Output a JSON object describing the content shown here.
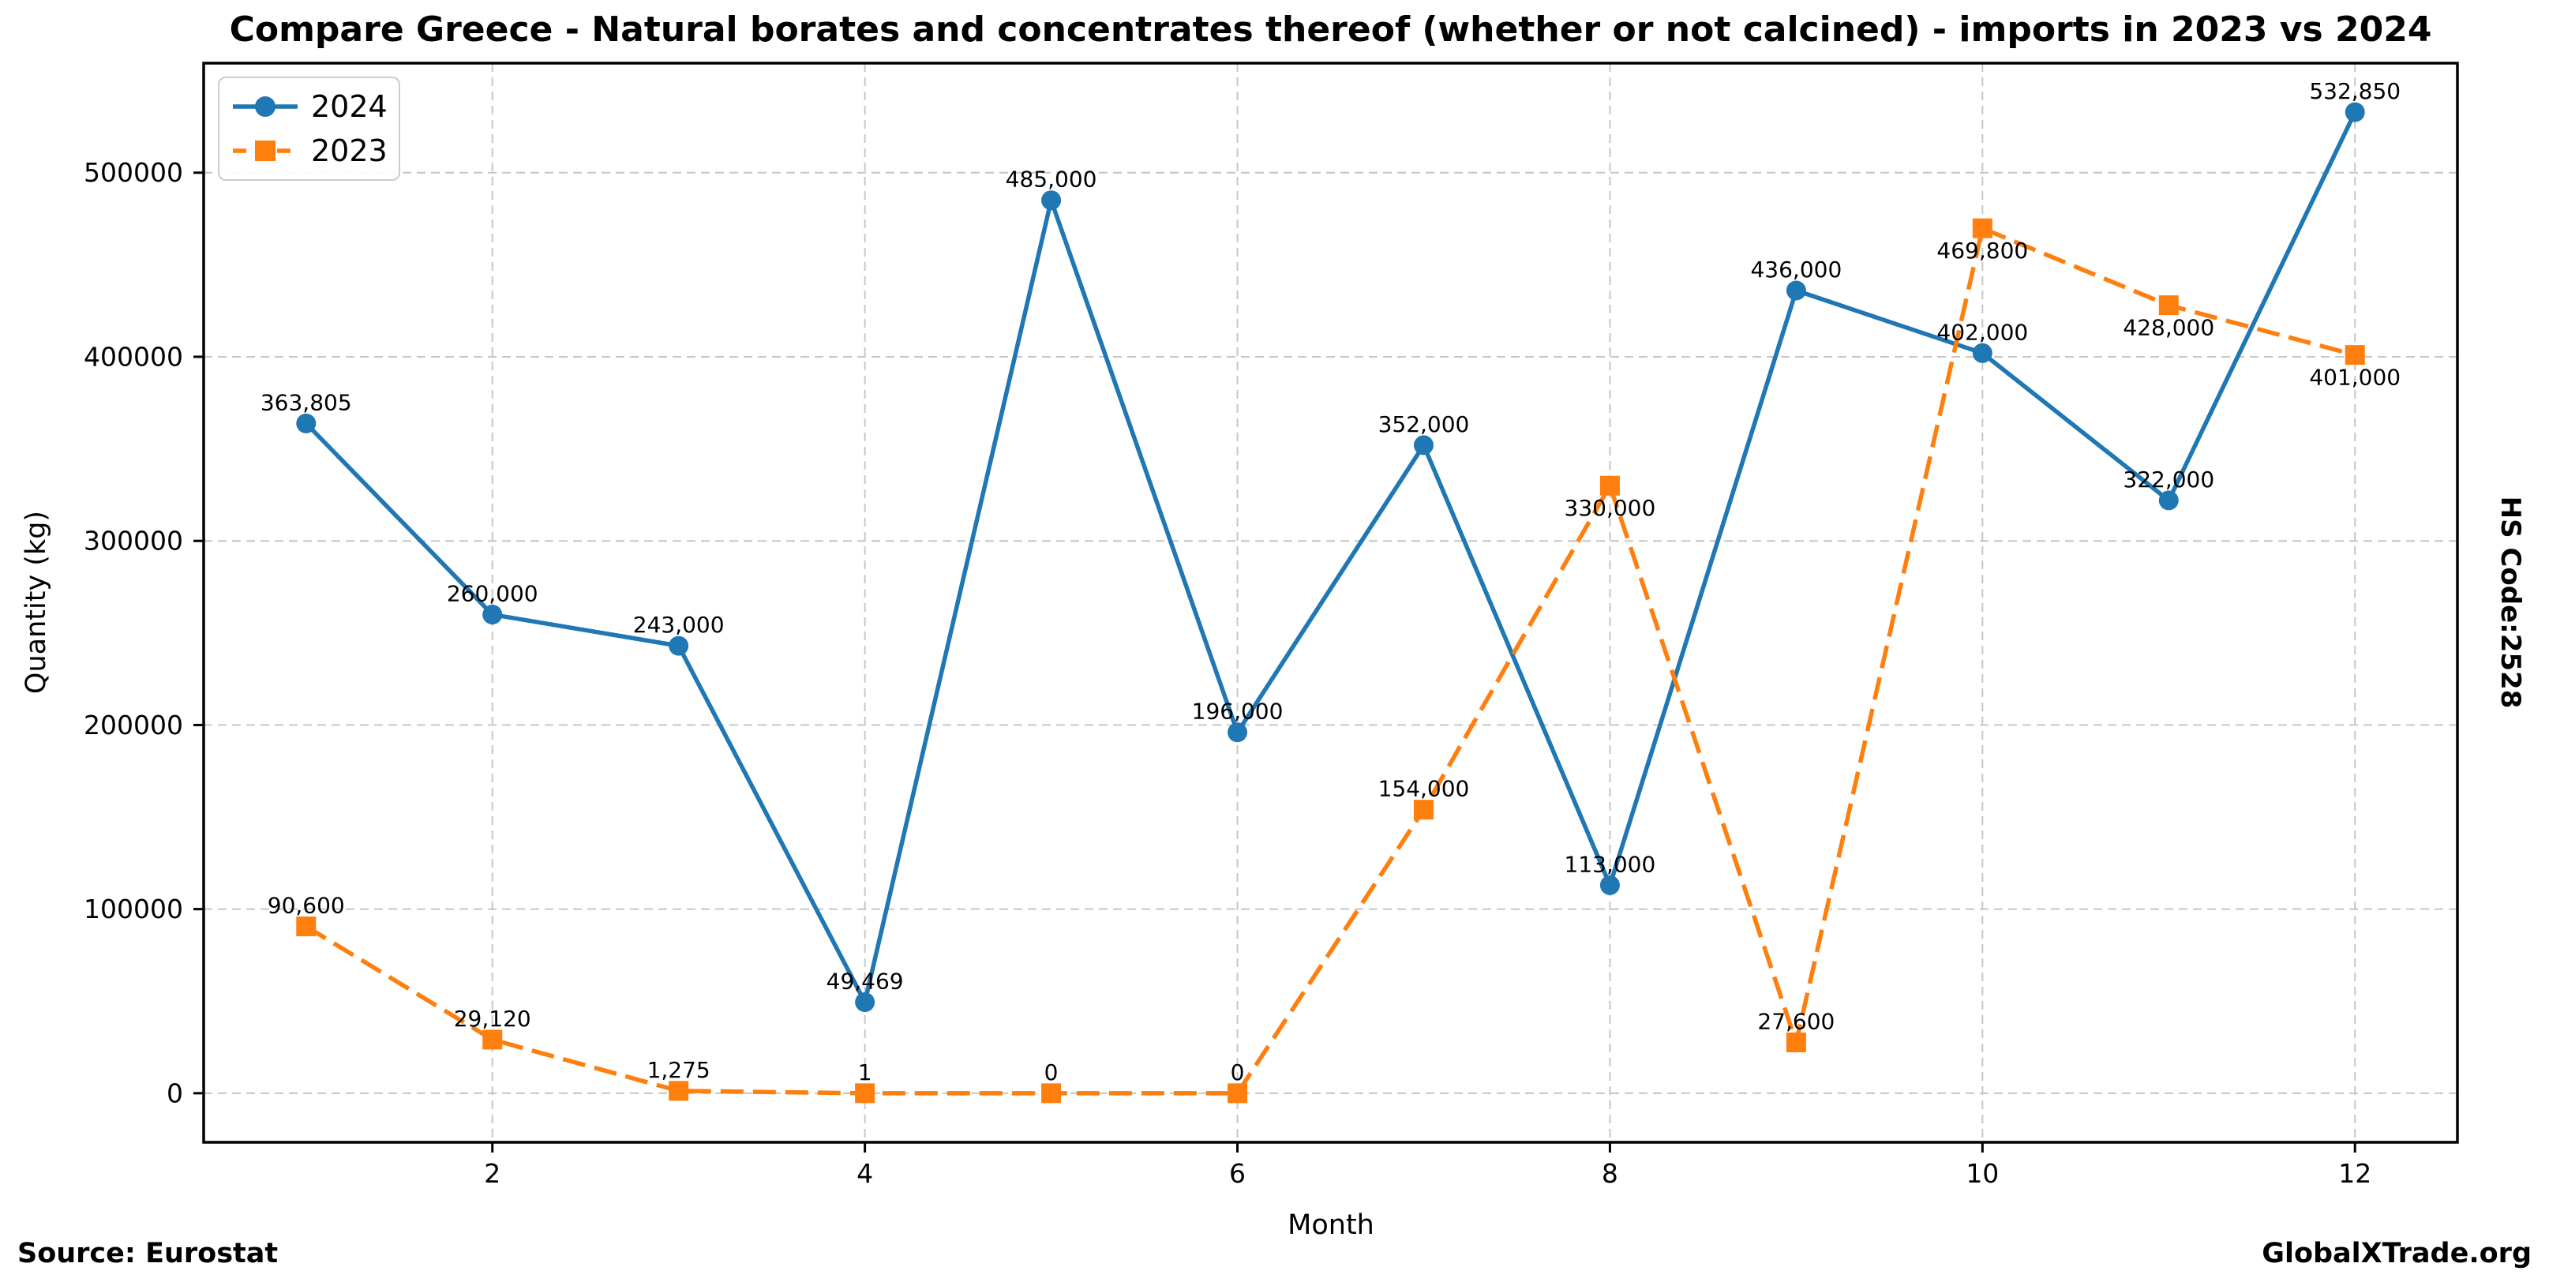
{
  "chart_data": {
    "type": "line",
    "title": "Compare Greece - Natural borates and concentrates thereof (whether or not calcined) - imports in 2023 vs 2024",
    "xlabel": "Month",
    "ylabel": "Quantity (kg)",
    "right_axis_label": "HS Code:2528",
    "source_note": "Source: Eurostat",
    "branding": "GlobalXTrade.org",
    "x": [
      1,
      2,
      3,
      4,
      5,
      6,
      7,
      8,
      9,
      10,
      11,
      12
    ],
    "xticks": [
      2,
      4,
      6,
      8,
      10,
      12
    ],
    "yticks": [
      0,
      100000,
      200000,
      300000,
      400000,
      500000
    ],
    "ytick_labels": [
      "0",
      "100000",
      "200000",
      "300000",
      "400000",
      "500000"
    ],
    "xlim": [
      0.45,
      12.55
    ],
    "ylim": [
      -26642,
      559492
    ],
    "grid": true,
    "legend_position": "upper-left",
    "series": [
      {
        "name": "2024",
        "color": "#1f77b4",
        "line_style": "solid",
        "marker": "circle",
        "values": [
          363805,
          260000,
          243000,
          49469,
          485000,
          196000,
          352000,
          113000,
          436000,
          402000,
          322000,
          532850
        ],
        "point_labels": [
          "363,805",
          "260,000",
          "243,000",
          "49,469",
          "485,000",
          "196,000",
          "352,000",
          "113,000",
          "436,000",
          "402,000",
          "322,000",
          "532,850"
        ],
        "label_side": [
          "above",
          "above",
          "above",
          "above",
          "above",
          "above",
          "above",
          "above",
          "above",
          "above",
          "above",
          "above"
        ]
      },
      {
        "name": "2023",
        "color": "#ff7f0e",
        "line_style": "dashed",
        "marker": "square",
        "values": [
          90600,
          29120,
          1275,
          1,
          0,
          0,
          154000,
          330000,
          27600,
          469800,
          428000,
          401000
        ],
        "point_labels": [
          "90,600",
          "29,120",
          "1,275",
          "1",
          "0",
          "0",
          "154,000",
          "330,000",
          "27,600",
          "469,800",
          "428,000",
          "401,000"
        ],
        "label_side": [
          "above",
          "above",
          "above",
          "above",
          "above",
          "above",
          "above",
          "below",
          "above",
          "below",
          "below",
          "below"
        ]
      }
    ],
    "colors": {
      "grid": "#c6c6c6",
      "axis": "#000000",
      "text": "#000000",
      "legend_border": "#cccccc"
    }
  }
}
